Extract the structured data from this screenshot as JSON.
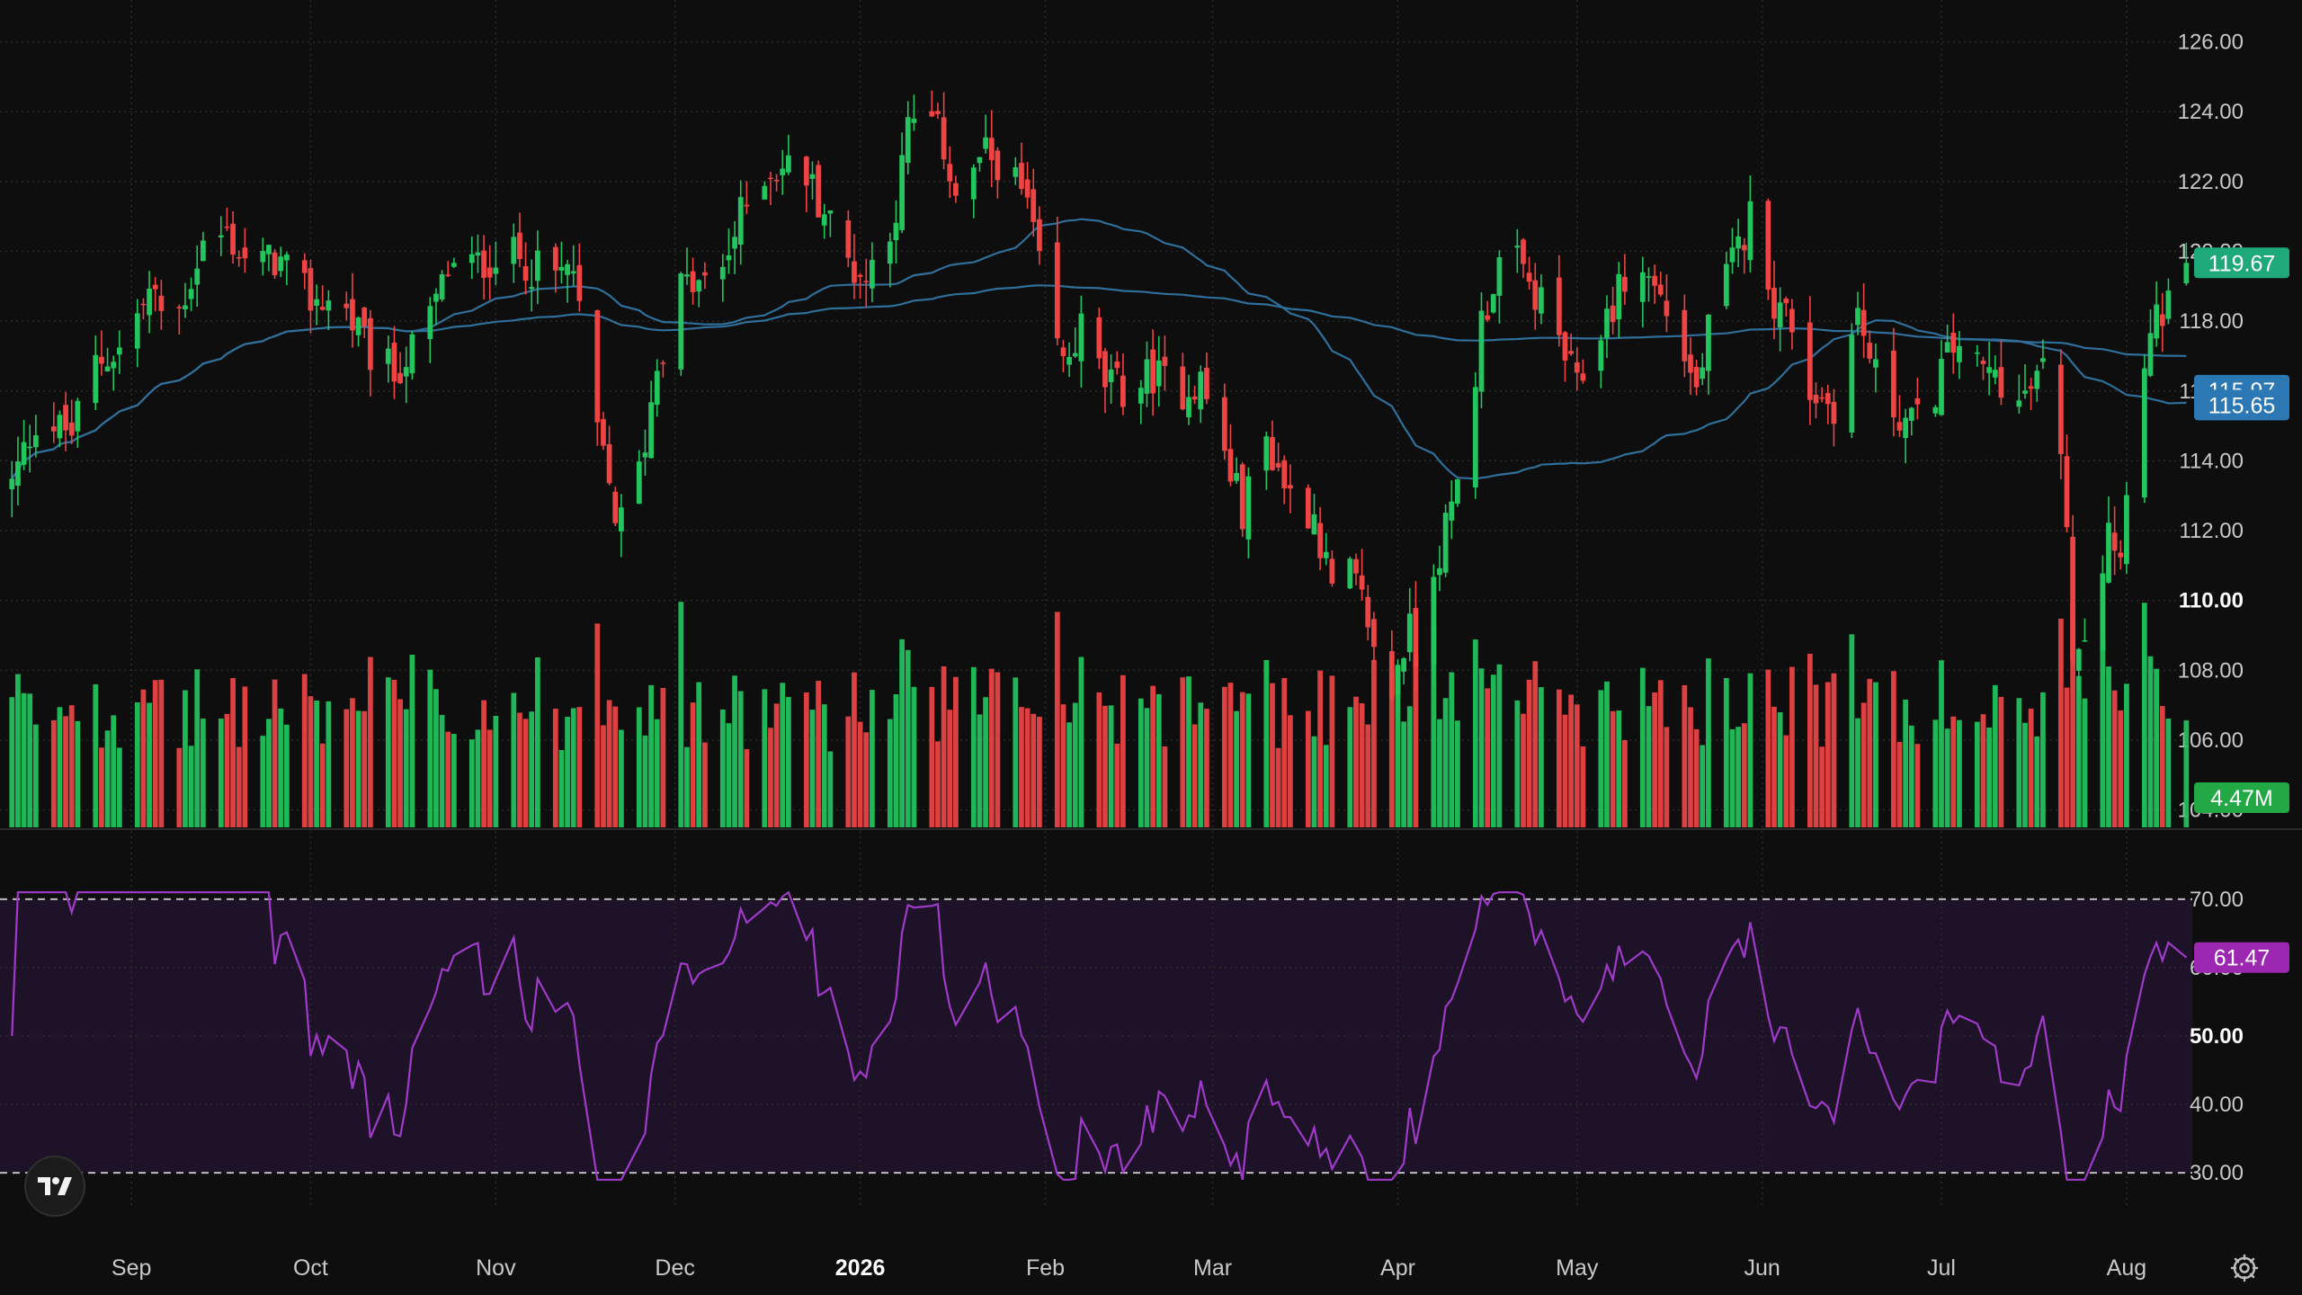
{
  "colors": {
    "background": "#0e0e0e",
    "grid": "#2a2a2a",
    "up": "#22c55e",
    "down": "#ef4444",
    "ma": "#2f6f9a",
    "rsi_line": "#a03ac9",
    "rsi_band": "#1e1228",
    "axis_text": "#c9c9c9",
    "tag_price": "#1fa97a",
    "tag_ma": "#2b78b5",
    "tag_volume": "#22a845",
    "tag_rsi": "#9c27b0"
  },
  "price_tag": "119.67",
  "ma_tags": [
    "115.97",
    "115.65"
  ],
  "volume_tag": "4.47M",
  "rsi_tag": "61.47",
  "chart_data": {
    "type": "candlestick",
    "price_axis": {
      "range": [
        103.5,
        127.2
      ],
      "ticks": [
        "126.00",
        "124.00",
        "122.00",
        "120.00",
        "118.00",
        "116.00",
        "114.00",
        "112.00",
        "110.00",
        "108.00",
        "106.00",
        "104.00"
      ],
      "bold_tick": "110.00",
      "grid": true
    },
    "rsi_axis": {
      "range": [
        27,
        73
      ],
      "ticks": [
        "70.00",
        "60.00",
        "50.00",
        "40.00",
        "30.00"
      ],
      "bold_tick": "50.00",
      "upper": 70,
      "lower": 30
    },
    "time_axis": {
      "labels": [
        {
          "text": "Sep",
          "day": 20,
          "bold": false
        },
        {
          "text": "Oct",
          "day": 50,
          "bold": false
        },
        {
          "text": "Nov",
          "day": 81,
          "bold": false
        },
        {
          "text": "Dec",
          "day": 111,
          "bold": false
        },
        {
          "text": "2026",
          "day": 142,
          "bold": true
        },
        {
          "text": "Feb",
          "day": 173,
          "bold": false
        },
        {
          "text": "Mar",
          "day": 201,
          "bold": false
        },
        {
          "text": "Apr",
          "day": 232,
          "bold": false
        },
        {
          "text": "May",
          "day": 262,
          "bold": false
        },
        {
          "text": "Jun",
          "day": 293,
          "bold": false
        },
        {
          "text": "Jul",
          "day": 323,
          "bold": false
        },
        {
          "text": "Aug",
          "day": 354,
          "bold": false
        }
      ],
      "day_range": [
        -2,
        365
      ]
    },
    "price_anchors": [
      [
        0,
        113.3
      ],
      [
        4,
        115.2
      ],
      [
        10,
        114.8
      ],
      [
        14,
        116.8
      ],
      [
        18,
        117.2
      ],
      [
        23,
        118.8
      ],
      [
        27,
        117.8
      ],
      [
        32,
        120.2
      ],
      [
        36,
        120.5
      ],
      [
        40,
        119.5
      ],
      [
        44,
        119.8
      ],
      [
        50,
        118.6
      ],
      [
        55,
        118.6
      ],
      [
        60,
        117.0
      ],
      [
        64,
        116.5
      ],
      [
        69,
        117.6
      ],
      [
        73,
        119.5
      ],
      [
        78,
        119.6
      ],
      [
        82,
        120.0
      ],
      [
        86,
        119.7
      ],
      [
        90,
        119.2
      ],
      [
        94,
        119.5
      ],
      [
        96,
        116.5
      ],
      [
        99,
        114.0
      ],
      [
        101,
        112.5
      ],
      [
        103,
        112.0
      ],
      [
        106,
        114.6
      ],
      [
        108,
        116.8
      ],
      [
        112,
        119.0
      ],
      [
        118,
        119.0
      ],
      [
        122,
        121.0
      ],
      [
        126,
        122.3
      ],
      [
        132,
        122.5
      ],
      [
        136,
        121.2
      ],
      [
        140,
        119.7
      ],
      [
        143,
        119.2
      ],
      [
        146,
        120.5
      ],
      [
        148,
        121.2
      ],
      [
        150,
        123.5
      ],
      [
        153,
        124.0
      ],
      [
        156,
        123.0
      ],
      [
        159,
        121.0
      ],
      [
        162,
        122.7
      ],
      [
        166,
        122.6
      ],
      [
        170,
        121.3
      ],
      [
        173,
        118.5
      ],
      [
        176,
        116.7
      ],
      [
        179,
        117.8
      ],
      [
        183,
        116.2
      ],
      [
        187,
        116.0
      ],
      [
        191,
        116.5
      ],
      [
        195,
        116.0
      ],
      [
        199,
        116.3
      ],
      [
        202,
        114.7
      ],
      [
        206,
        112.6
      ],
      [
        210,
        114.6
      ],
      [
        214,
        113.0
      ],
      [
        218,
        112.5
      ],
      [
        221,
        110.2
      ],
      [
        224,
        110.7
      ],
      [
        227,
        109.5
      ],
      [
        230,
        106.4
      ],
      [
        232,
        108.3
      ],
      [
        234,
        109.1
      ],
      [
        236,
        107.9
      ],
      [
        238,
        111.0
      ],
      [
        241,
        112.5
      ],
      [
        244,
        115.0
      ],
      [
        246,
        118.0
      ],
      [
        250,
        120.2
      ],
      [
        254,
        119.0
      ],
      [
        258,
        118.0
      ],
      [
        262,
        116.0
      ],
      [
        266,
        117.8
      ],
      [
        270,
        119.2
      ],
      [
        274,
        119.3
      ],
      [
        278,
        118.0
      ],
      [
        282,
        116.0
      ],
      [
        285,
        118.5
      ],
      [
        289,
        120.0
      ],
      [
        292,
        121.5
      ],
      [
        295,
        118.5
      ],
      [
        298,
        118.0
      ],
      [
        301,
        116.0
      ],
      [
        305,
        115.6
      ],
      [
        309,
        118.2
      ],
      [
        313,
        115.8
      ],
      [
        317,
        115.2
      ],
      [
        320,
        115.0
      ],
      [
        323,
        116.6
      ],
      [
        326,
        117.5
      ],
      [
        329,
        116.6
      ],
      [
        333,
        116.4
      ],
      [
        336,
        115.6
      ],
      [
        340,
        116.5
      ],
      [
        343,
        114.6
      ],
      [
        345,
        108.8
      ],
      [
        347,
        109.2
      ],
      [
        349,
        110.0
      ],
      [
        351,
        112.4
      ],
      [
        353,
        111.2
      ],
      [
        355,
        116.0
      ],
      [
        358,
        117.5
      ],
      [
        360,
        118.3
      ],
      [
        362,
        118.5
      ],
      [
        364,
        119.8
      ]
    ],
    "volume_axis": {
      "range": [
        0,
        26.5
      ]
    },
    "ma_fast_tag_value": 115.97,
    "ma_slow_tag_value": 115.65,
    "last_close": 119.67,
    "last_volume_millions": 4.47,
    "last_rsi": 61.47
  }
}
